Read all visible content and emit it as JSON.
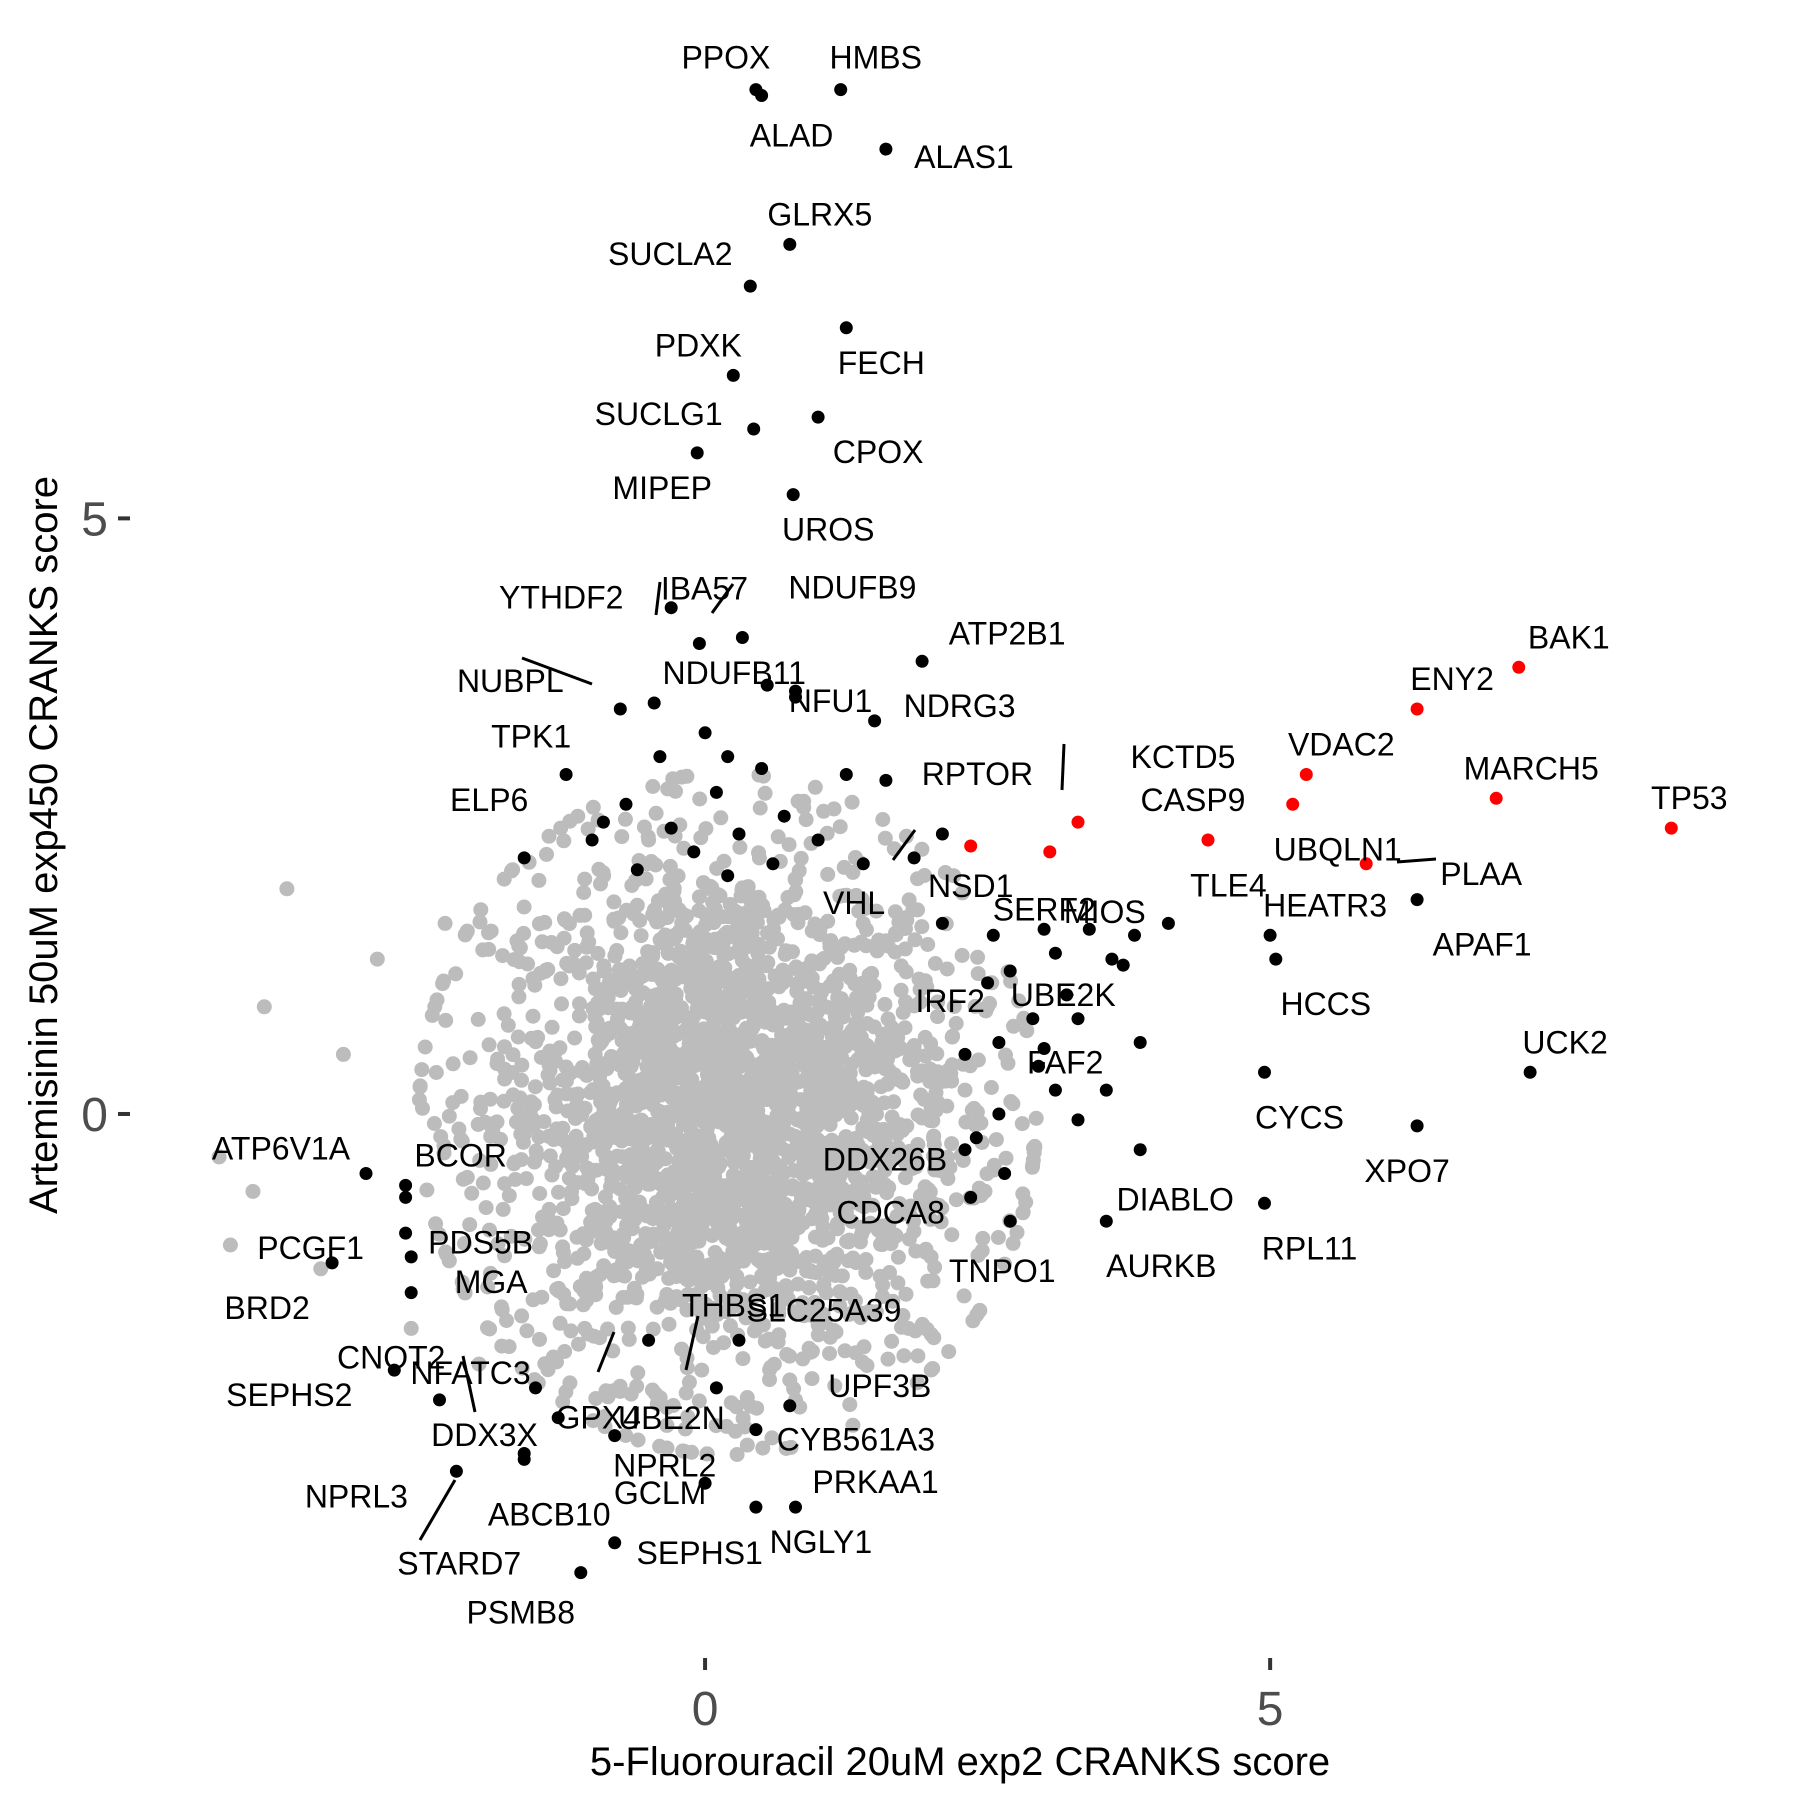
{
  "chart_data": {
    "type": "scatter",
    "xlabel": "5-Fluorouracil 20uM exp2 CRANKS score",
    "ylabel": "Artemisinin 50uM exp450 CRANKS score",
    "xlim": [
      -5.0,
      9.6
    ],
    "ylim": [
      -4.5,
      9.1
    ],
    "x_ticks": [
      0,
      5
    ],
    "y_ticks": [
      0,
      5
    ],
    "grid": false,
    "legend": "none",
    "colors": {
      "background": "#bcbcbc",
      "labeled": "#000000",
      "highlight": "#ff0000"
    },
    "background_cloud": {
      "center": [
        0.2,
        0.0
      ],
      "spread": [
        1.05,
        1.1
      ],
      "count": 2600
    },
    "background_points": [
      {
        "x": -3.7,
        "y": 1.89
      },
      {
        "x": -4.3,
        "y": -0.36
      },
      {
        "x": -3.9,
        "y": 0.9
      },
      {
        "x": -4.0,
        "y": -0.65
      },
      {
        "x": -4.2,
        "y": -1.1
      },
      {
        "x": -3.4,
        "y": -1.3
      },
      {
        "x": -3.2,
        "y": 0.5
      },
      {
        "x": -2.9,
        "y": 1.3
      },
      {
        "x": -2.6,
        "y": -1.8
      },
      {
        "x": -2.3,
        "y": 1.6
      },
      {
        "x": -2.0,
        "y": -2.1
      },
      {
        "x": 2.2,
        "y": 2.0
      },
      {
        "x": 2.0,
        "y": -1.2
      },
      {
        "x": 1.8,
        "y": -1.8
      },
      {
        "x": 2.5,
        "y": 0.9
      },
      {
        "x": -0.5,
        "y": 2.3
      },
      {
        "x": 0.8,
        "y": -2.4
      },
      {
        "x": 2.3,
        "y": 0.2
      }
    ],
    "labeled_points": [
      {
        "label": "PPOX",
        "x": 0.45,
        "y": 8.6,
        "color": "black"
      },
      {
        "label": "ALAD",
        "x": 0.5,
        "y": 8.55,
        "color": "black"
      },
      {
        "label": "HMBS",
        "x": 1.2,
        "y": 8.6,
        "color": "black"
      },
      {
        "label": "ALAS1",
        "x": 1.6,
        "y": 8.1,
        "color": "black"
      },
      {
        "label": "GLRX5",
        "x": 0.75,
        "y": 7.3,
        "color": "black"
      },
      {
        "label": "SUCLA2",
        "x": 0.4,
        "y": 6.95,
        "color": "black"
      },
      {
        "label": "FECH",
        "x": 1.25,
        "y": 6.6,
        "color": "black"
      },
      {
        "label": "PDXK",
        "x": 0.25,
        "y": 6.2,
        "color": "black"
      },
      {
        "label": "CPOX",
        "x": 1.0,
        "y": 5.85,
        "color": "black"
      },
      {
        "label": "SUCLG1",
        "x": 0.43,
        "y": 5.75,
        "color": "black"
      },
      {
        "label": "MIPEP",
        "x": -0.07,
        "y": 5.55,
        "color": "black"
      },
      {
        "label": "UROS",
        "x": 0.78,
        "y": 5.2,
        "color": "black"
      },
      {
        "label": "YTHDF2",
        "x": -0.3,
        "y": 4.25,
        "color": "black"
      },
      {
        "label": "IBA57",
        "x": -0.05,
        "y": 3.95,
        "color": "black"
      },
      {
        "label": "NDUFB9",
        "x": 0.33,
        "y": 4.0,
        "color": "black"
      },
      {
        "label": "NFU1",
        "x": 0.8,
        "y": 3.55,
        "color": "black"
      },
      {
        "label": "NUBPL",
        "x": -0.75,
        "y": 3.4,
        "color": "black"
      },
      {
        "label": "NDUFB11",
        "x": -0.45,
        "y": 3.45,
        "color": "black"
      },
      {
        "label": "ATP2B1",
        "x": 1.92,
        "y": 3.8,
        "color": "black"
      },
      {
        "label": "NDRG3",
        "x": 1.5,
        "y": 3.3,
        "color": "black"
      },
      {
        "label": "TPK1",
        "x": -1.23,
        "y": 2.85,
        "color": "black"
      },
      {
        "label": "ELP6",
        "x": -1.6,
        "y": 2.15,
        "color": "black"
      },
      {
        "label": "KCTD5",
        "x": 3.3,
        "y": 2.45,
        "color": "red"
      },
      {
        "label": "RPTOR",
        "x": 2.1,
        "y": 2.35,
        "color": "black"
      },
      {
        "label": "MIOS",
        "x": 3.05,
        "y": 2.2,
        "color": "red"
      },
      {
        "label": "NSD1",
        "x": 2.35,
        "y": 2.25,
        "color": "red"
      },
      {
        "label": "VHL",
        "x": 1.85,
        "y": 2.15,
        "color": "black"
      },
      {
        "label": "CASP9",
        "x": 4.45,
        "y": 2.3,
        "color": "red"
      },
      {
        "label": "VDAC2",
        "x": 5.32,
        "y": 2.85,
        "color": "red"
      },
      {
        "label": "UBQLN1",
        "x": 5.2,
        "y": 2.6,
        "color": "red"
      },
      {
        "label": "BAK1",
        "x": 7.2,
        "y": 3.75,
        "color": "red"
      },
      {
        "label": "ENY2",
        "x": 6.3,
        "y": 3.4,
        "color": "red"
      },
      {
        "label": "MARCH5",
        "x": 7.0,
        "y": 2.65,
        "color": "red"
      },
      {
        "label": "TP53",
        "x": 8.55,
        "y": 2.4,
        "color": "red"
      },
      {
        "label": "PLAA",
        "x": 5.85,
        "y": 2.1,
        "color": "red"
      },
      {
        "label": "APAF1",
        "x": 6.3,
        "y": 1.8,
        "color": "black"
      },
      {
        "label": "HEATR3",
        "x": 5.0,
        "y": 1.5,
        "color": "black"
      },
      {
        "label": "TLE4",
        "x": 4.1,
        "y": 1.6,
        "color": "black"
      },
      {
        "label": "HCCS",
        "x": 5.05,
        "y": 1.3,
        "color": "black"
      },
      {
        "label": "SERF2",
        "x": 3.4,
        "y": 1.55,
        "color": "black"
      },
      {
        "label": "UBE2K",
        "x": 3.7,
        "y": 1.25,
        "color": "black"
      },
      {
        "label": "IRF2",
        "x": 2.7,
        "y": 1.2,
        "color": "black"
      },
      {
        "label": "UCK2",
        "x": 7.3,
        "y": 0.35,
        "color": "black"
      },
      {
        "label": "FAF2",
        "x": 3.85,
        "y": 0.6,
        "color": "black"
      },
      {
        "label": "CYCS",
        "x": 4.95,
        "y": 0.35,
        "color": "black"
      },
      {
        "label": "XPO7",
        "x": 6.3,
        "y": -0.1,
        "color": "black"
      },
      {
        "label": "DDX26B",
        "x": 2.3,
        "y": -0.3,
        "color": "black"
      },
      {
        "label": "DIABLO",
        "x": 3.85,
        "y": -0.3,
        "color": "black"
      },
      {
        "label": "CDCA8",
        "x": 2.35,
        "y": -0.7,
        "color": "black"
      },
      {
        "label": "RPL11",
        "x": 4.95,
        "y": -0.75,
        "color": "black"
      },
      {
        "label": "TNPO1",
        "x": 2.7,
        "y": -0.9,
        "color": "black"
      },
      {
        "label": "AURKB",
        "x": 3.55,
        "y": -0.9,
        "color": "black"
      },
      {
        "label": "ATP6V1A",
        "x": -3.0,
        "y": -0.5,
        "color": "black"
      },
      {
        "label": "BCOR",
        "x": -2.65,
        "y": -0.6,
        "color": "black"
      },
      {
        "label": "PDS5B",
        "x": -2.65,
        "y": -0.7,
        "color": "black"
      },
      {
        "label": "PCGF1",
        "x": -2.65,
        "y": -1.0,
        "color": "black"
      },
      {
        "label": "BRD2",
        "x": -3.3,
        "y": -1.25,
        "color": "black"
      },
      {
        "label": "MGA",
        "x": -2.6,
        "y": -1.2,
        "color": "black"
      },
      {
        "label": "CNOT2",
        "x": -2.6,
        "y": -1.5,
        "color": "black"
      },
      {
        "label": "THBS1",
        "x": -0.5,
        "y": -1.9,
        "color": "black"
      },
      {
        "label": "SLC25A39",
        "x": 0.3,
        "y": -1.9,
        "color": "black"
      },
      {
        "label": "NFATC3",
        "x": -1.5,
        "y": -2.3,
        "color": "black"
      },
      {
        "label": "UBE2N",
        "x": 0.1,
        "y": -2.3,
        "color": "black"
      },
      {
        "label": "SEPHS2",
        "x": -2.75,
        "y": -2.15,
        "color": "black"
      },
      {
        "label": "DDX3X",
        "x": -2.35,
        "y": -2.4,
        "color": "black"
      },
      {
        "label": "UPF3B",
        "x": 0.75,
        "y": -2.45,
        "color": "black"
      },
      {
        "label": "GPX4",
        "x": -1.3,
        "y": -2.55,
        "color": "black"
      },
      {
        "label": "CYB561A3",
        "x": 0.45,
        "y": -2.65,
        "color": "black"
      },
      {
        "label": "NPRL2",
        "x": -0.8,
        "y": -2.7,
        "color": "black"
      },
      {
        "label": "NPRL3",
        "x": -2.2,
        "y": -3.0,
        "color": "black"
      },
      {
        "label": "ABCB10",
        "x": -1.6,
        "y": -2.9,
        "color": "black"
      },
      {
        "label": "STARD7",
        "x": -1.6,
        "y": -2.85,
        "color": "black"
      },
      {
        "label": "GCLM",
        "x": 0.0,
        "y": -3.1,
        "color": "black"
      },
      {
        "label": "PRKAA1",
        "x": 0.8,
        "y": -3.3,
        "color": "black"
      },
      {
        "label": "NGLY1",
        "x": 0.45,
        "y": -3.3,
        "color": "black"
      },
      {
        "label": "SEPHS1",
        "x": -0.8,
        "y": -3.6,
        "color": "black"
      },
      {
        "label": "PSMB8",
        "x": -1.1,
        "y": -3.85,
        "color": "black"
      }
    ],
    "extra_black_points": [
      {
        "x": 0.0,
        "y": 3.2
      },
      {
        "x": -0.4,
        "y": 3.0
      },
      {
        "x": 0.2,
        "y": 3.0
      },
      {
        "x": 0.5,
        "y": 2.9
      },
      {
        "x": -0.7,
        "y": 2.6
      },
      {
        "x": 0.1,
        "y": 2.7
      },
      {
        "x": 0.7,
        "y": 2.5
      },
      {
        "x": -0.3,
        "y": 2.4
      },
      {
        "x": 0.3,
        "y": 2.35
      },
      {
        "x": 1.0,
        "y": 2.3
      },
      {
        "x": -0.1,
        "y": 2.2
      },
      {
        "x": 0.6,
        "y": 2.1
      },
      {
        "x": -0.6,
        "y": 2.05
      },
      {
        "x": 1.4,
        "y": 2.1
      },
      {
        "x": 0.2,
        "y": 2.0
      },
      {
        "x": 1.6,
        "y": 2.8
      },
      {
        "x": 1.25,
        "y": 2.85
      },
      {
        "x": 0.55,
        "y": 3.6
      },
      {
        "x": 0.8,
        "y": 3.5
      },
      {
        "x": -1.0,
        "y": 2.3
      },
      {
        "x": -0.9,
        "y": 2.45
      },
      {
        "x": 3.1,
        "y": 1.35
      },
      {
        "x": 3.2,
        "y": 1.0
      },
      {
        "x": 2.5,
        "y": 1.1
      },
      {
        "x": 2.9,
        "y": 0.8
      },
      {
        "x": 2.6,
        "y": 0.6
      },
      {
        "x": 3.3,
        "y": 0.8
      },
      {
        "x": 2.3,
        "y": 0.5
      },
      {
        "x": 2.95,
        "y": 0.4
      },
      {
        "x": 3.1,
        "y": 0.2
      },
      {
        "x": 2.6,
        "y": 0.0
      },
      {
        "x": 3.3,
        "y": -0.05
      },
      {
        "x": 2.4,
        "y": -0.2
      },
      {
        "x": 2.65,
        "y": -0.5
      },
      {
        "x": 3.8,
        "y": 1.5
      },
      {
        "x": 3.6,
        "y": 1.3
      },
      {
        "x": 3.0,
        "y": 1.55
      },
      {
        "x": 2.1,
        "y": 1.6
      },
      {
        "x": 2.55,
        "y": 1.5
      },
      {
        "x": 3.55,
        "y": 0.2
      },
      {
        "x": 3.0,
        "y": 0.55
      }
    ]
  }
}
